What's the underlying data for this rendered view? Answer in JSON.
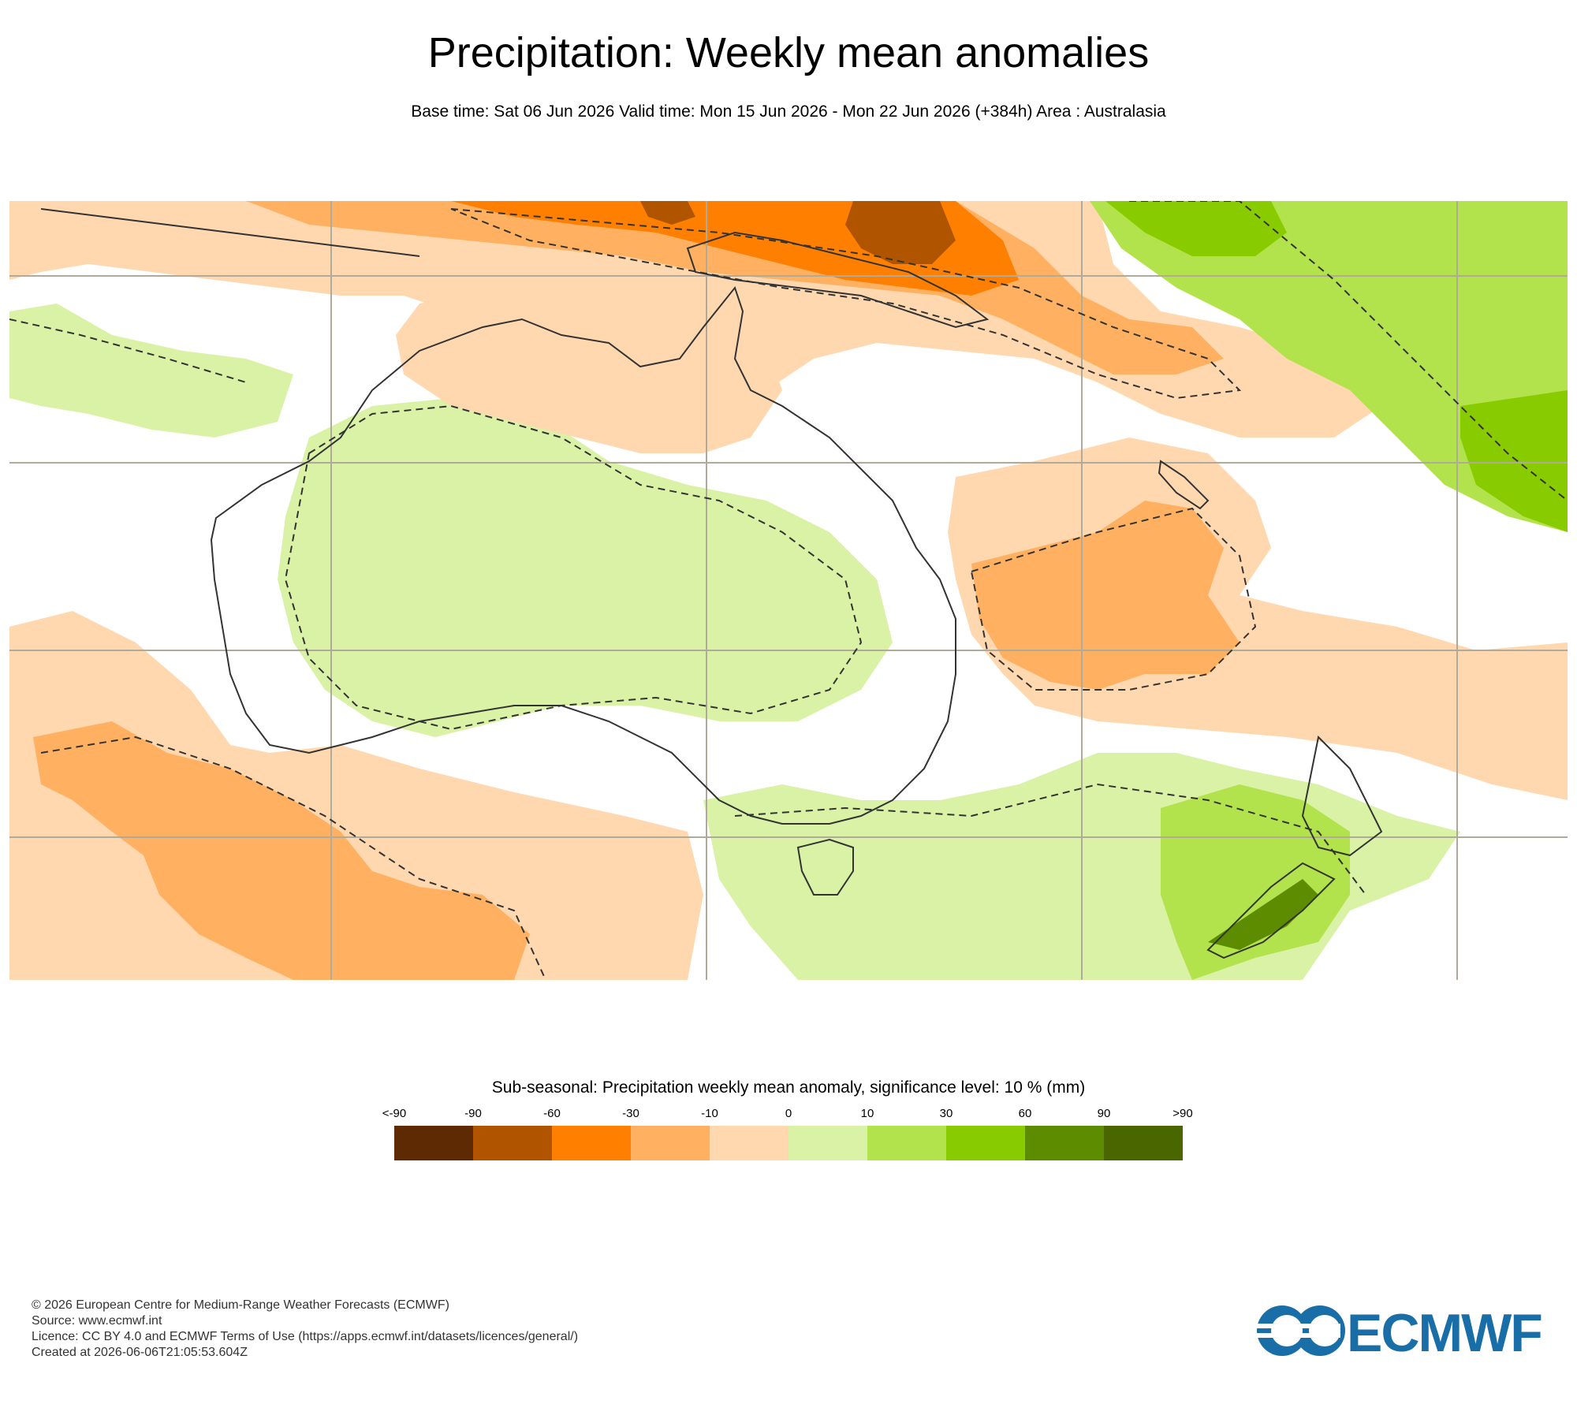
{
  "title": "Precipitation: Weekly mean anomalies",
  "subtitle": "Base time: Sat 06 Jun 2026 Valid time: Mon 15 Jun 2026 - Mon 22 Jun 2026 (+384h) Area : Australasia",
  "legend": {
    "title": "Sub-seasonal: Precipitation weekly mean anomaly, significance level: 10 % (mm)",
    "labels": [
      "<-90",
      "-90",
      "-60",
      "-30",
      "-10",
      "0",
      "10",
      "30",
      "60",
      "90",
      ">90"
    ],
    "colors": [
      "#5e2a04",
      "#b05400",
      "#ff7f00",
      "#ffb061",
      "#ffd8b0",
      "#d9f2a6",
      "#b3e34c",
      "#88cc00",
      "#5e8c00",
      "#4a6600"
    ]
  },
  "map_colors": {
    "coastline": "#333333",
    "grid": "#b0aa9a",
    "contour": "#333333"
  },
  "footer": {
    "copyright": "© 2026 European Centre for Medium-Range Weather Forecasts (ECMWF)",
    "source": "Source: www.ecmwf.int",
    "licence": "Licence: CC BY 4.0 and ECMWF Terms of Use (https://apps.ecmwf.int/datasets/licences/general/)",
    "created": "Created at 2026-06-06T21:05:53.604Z"
  },
  "logo": {
    "text": "ECMWF",
    "color": "#1a6ea8"
  }
}
